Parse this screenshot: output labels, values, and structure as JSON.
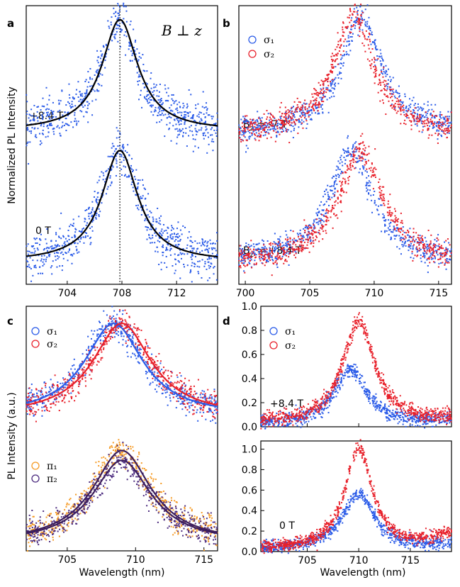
{
  "colors": {
    "blue": "#2a5be8",
    "red": "#e8202a",
    "orange": "#f59a24",
    "purple": "#4b2a7e",
    "fit": "#000000"
  },
  "labels": {
    "ylabel_top": "Normalized PL Intensity",
    "ylabel_bottom": "PL Intensity (a.u.)",
    "xlabel_c": "Wavelength (nm)",
    "xlabel_d": "Wavelength (nm)"
  },
  "chart_data": [
    {
      "panel": "a",
      "type": "scatter",
      "title": "B ⊥ z",
      "xlim": [
        701,
        715
      ],
      "xticks": [
        704,
        708,
        712
      ],
      "yticks": [],
      "marker_line_at": 707.85,
      "series": [
        {
          "name": "+8.4 T",
          "center": 707.85,
          "width": 1.6,
          "baseline": 0.55,
          "height": 0.4,
          "fit": true,
          "color_key": "blue"
        },
        {
          "name": "0 T",
          "center": 707.85,
          "width": 1.6,
          "baseline": 0.08,
          "height": 0.4,
          "fit": true,
          "color_key": "blue"
        }
      ]
    },
    {
      "panel": "b",
      "type": "scatter",
      "title": "",
      "xlim": [
        699.5,
        716
      ],
      "xticks": [
        700,
        705,
        710,
        715
      ],
      "yticks": [],
      "legend": [
        "σ₁",
        "σ₂"
      ],
      "groups": [
        {
          "label": "Bz = -7 T",
          "label_main": "B",
          "label_sub": "z",
          "label_rest": " = -7 T",
          "series": [
            {
              "name": "σ₁",
              "center": 709.0,
              "width": 1.9,
              "baseline": 0.54,
              "height": 0.42,
              "color_key": "blue"
            },
            {
              "name": "σ₂",
              "center": 708.4,
              "width": 1.9,
              "baseline": 0.54,
              "height": 0.42,
              "color_key": "red"
            }
          ]
        },
        {
          "label": "Bz = +8.4 T",
          "label_main": "B",
          "label_sub": "z",
          "label_rest": " = +8.4 T",
          "series": [
            {
              "name": "σ₁",
              "center": 708.2,
              "width": 2.0,
              "baseline": 0.08,
              "height": 0.4,
              "color_key": "blue"
            },
            {
              "name": "σ₂",
              "center": 709.0,
              "width": 2.0,
              "baseline": 0.08,
              "height": 0.4,
              "color_key": "red"
            }
          ]
        }
      ]
    },
    {
      "panel": "c",
      "type": "scatter",
      "title": "",
      "xlim": [
        702,
        716
      ],
      "xticks": [
        705,
        710,
        715
      ],
      "yticks": [],
      "xlabel": "Wavelength (nm)",
      "ylabel": "PL Intensity (a.u.)",
      "groups": [
        {
          "legend": [
            "σ₁",
            "σ₂"
          ],
          "series": [
            {
              "name": "σ₁",
              "center": 708.4,
              "width": 2.6,
              "baseline": 0.55,
              "height": 0.38,
              "fit": true,
              "color_key": "blue"
            },
            {
              "name": "σ₂",
              "center": 709.0,
              "width": 2.6,
              "baseline": 0.55,
              "height": 0.38,
              "fit": true,
              "color_key": "red"
            }
          ]
        },
        {
          "legend": [
            "π₁",
            "π₂"
          ],
          "series": [
            {
              "name": "π₁",
              "center": 709.0,
              "width": 2.6,
              "baseline": 0.03,
              "height": 0.38,
              "fit": true,
              "color_key": "orange"
            },
            {
              "name": "π₂",
              "center": 709.0,
              "width": 2.6,
              "baseline": 0.03,
              "height": 0.34,
              "fit": true,
              "color_key": "purple"
            }
          ]
        }
      ]
    },
    {
      "panel": "d",
      "type": "scatter",
      "title": "",
      "xlim": [
        700.5,
        719
      ],
      "xticks": [
        705,
        710,
        715
      ],
      "xlabel": "Wavelength (nm)",
      "subplots": [
        {
          "label": "+8.4 T",
          "ylim": [
            0,
            1.0
          ],
          "yticks": [
            0.0,
            0.2,
            0.4,
            0.6,
            0.8,
            1.0
          ],
          "ytick_labels": [
            "0.0",
            "0.2",
            "0.4",
            "0.6",
            "0.8",
            "1.0"
          ],
          "legend": [
            "σ₁",
            "σ₂"
          ],
          "series": [
            {
              "name": "σ₁",
              "center": 709.2,
              "width": 1.9,
              "height": 0.45,
              "tail": 0.15,
              "color_key": "blue"
            },
            {
              "name": "σ₂",
              "center": 710.0,
              "width": 1.9,
              "height": 0.85,
              "tail": 0.18,
              "color_key": "red"
            }
          ]
        },
        {
          "label": "0 T",
          "ylim": [
            0,
            1.08
          ],
          "yticks": [
            0.0,
            0.2,
            0.4,
            0.6,
            0.8,
            1.0
          ],
          "ytick_labels": [
            "0.0",
            "0.2",
            "0.4",
            "0.6",
            "0.8",
            "1.0"
          ],
          "series": [
            {
              "name": "σ₁",
              "center": 710.0,
              "width": 1.9,
              "height": 0.55,
              "tail": 0.15,
              "color_key": "blue"
            },
            {
              "name": "σ₂",
              "center": 710.0,
              "width": 1.6,
              "height": 1.0,
              "tail": 0.32,
              "color_key": "red"
            }
          ]
        }
      ]
    }
  ]
}
